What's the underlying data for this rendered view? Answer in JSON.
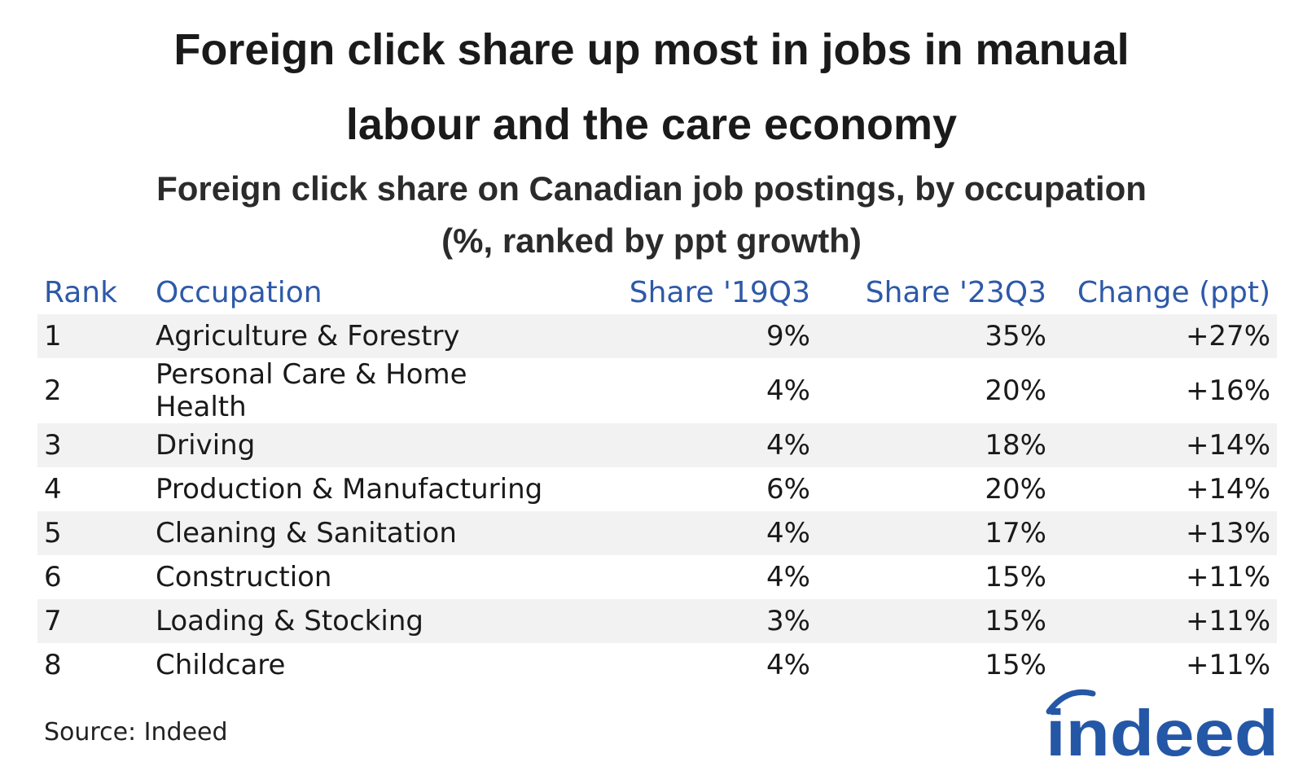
{
  "header": {
    "title": [
      "Foreign click share up most in jobs in manual",
      "labour and the care economy"
    ],
    "subtitle": [
      "Foreign click share on Canadian job postings, by occupation",
      "(%, ranked by ppt growth)"
    ]
  },
  "table": {
    "columns": [
      "Rank",
      "Occupation",
      "Share '19Q3",
      "Share '23Q3",
      "Change (ppt)"
    ],
    "rows": [
      [
        "1",
        "Agriculture & Forestry",
        "9%",
        "35%",
        "+27%"
      ],
      [
        "2",
        "Personal Care & Home Health",
        "4%",
        "20%",
        "+16%"
      ],
      [
        "3",
        "Driving",
        "4%",
        "18%",
        "+14%"
      ],
      [
        "4",
        "Production & Manufacturing",
        "6%",
        "20%",
        "+14%"
      ],
      [
        "5",
        "Cleaning & Sanitation",
        "4%",
        "17%",
        "+13%"
      ],
      [
        "6",
        "Construction",
        "4%",
        "15%",
        "+11%"
      ],
      [
        "7",
        "Loading & Stocking",
        "3%",
        "15%",
        "+11%"
      ],
      [
        "8",
        "Childcare",
        "4%",
        "15%",
        "+11%"
      ]
    ]
  },
  "footer": {
    "source": "Source: Indeed",
    "logo": "indeed"
  }
}
